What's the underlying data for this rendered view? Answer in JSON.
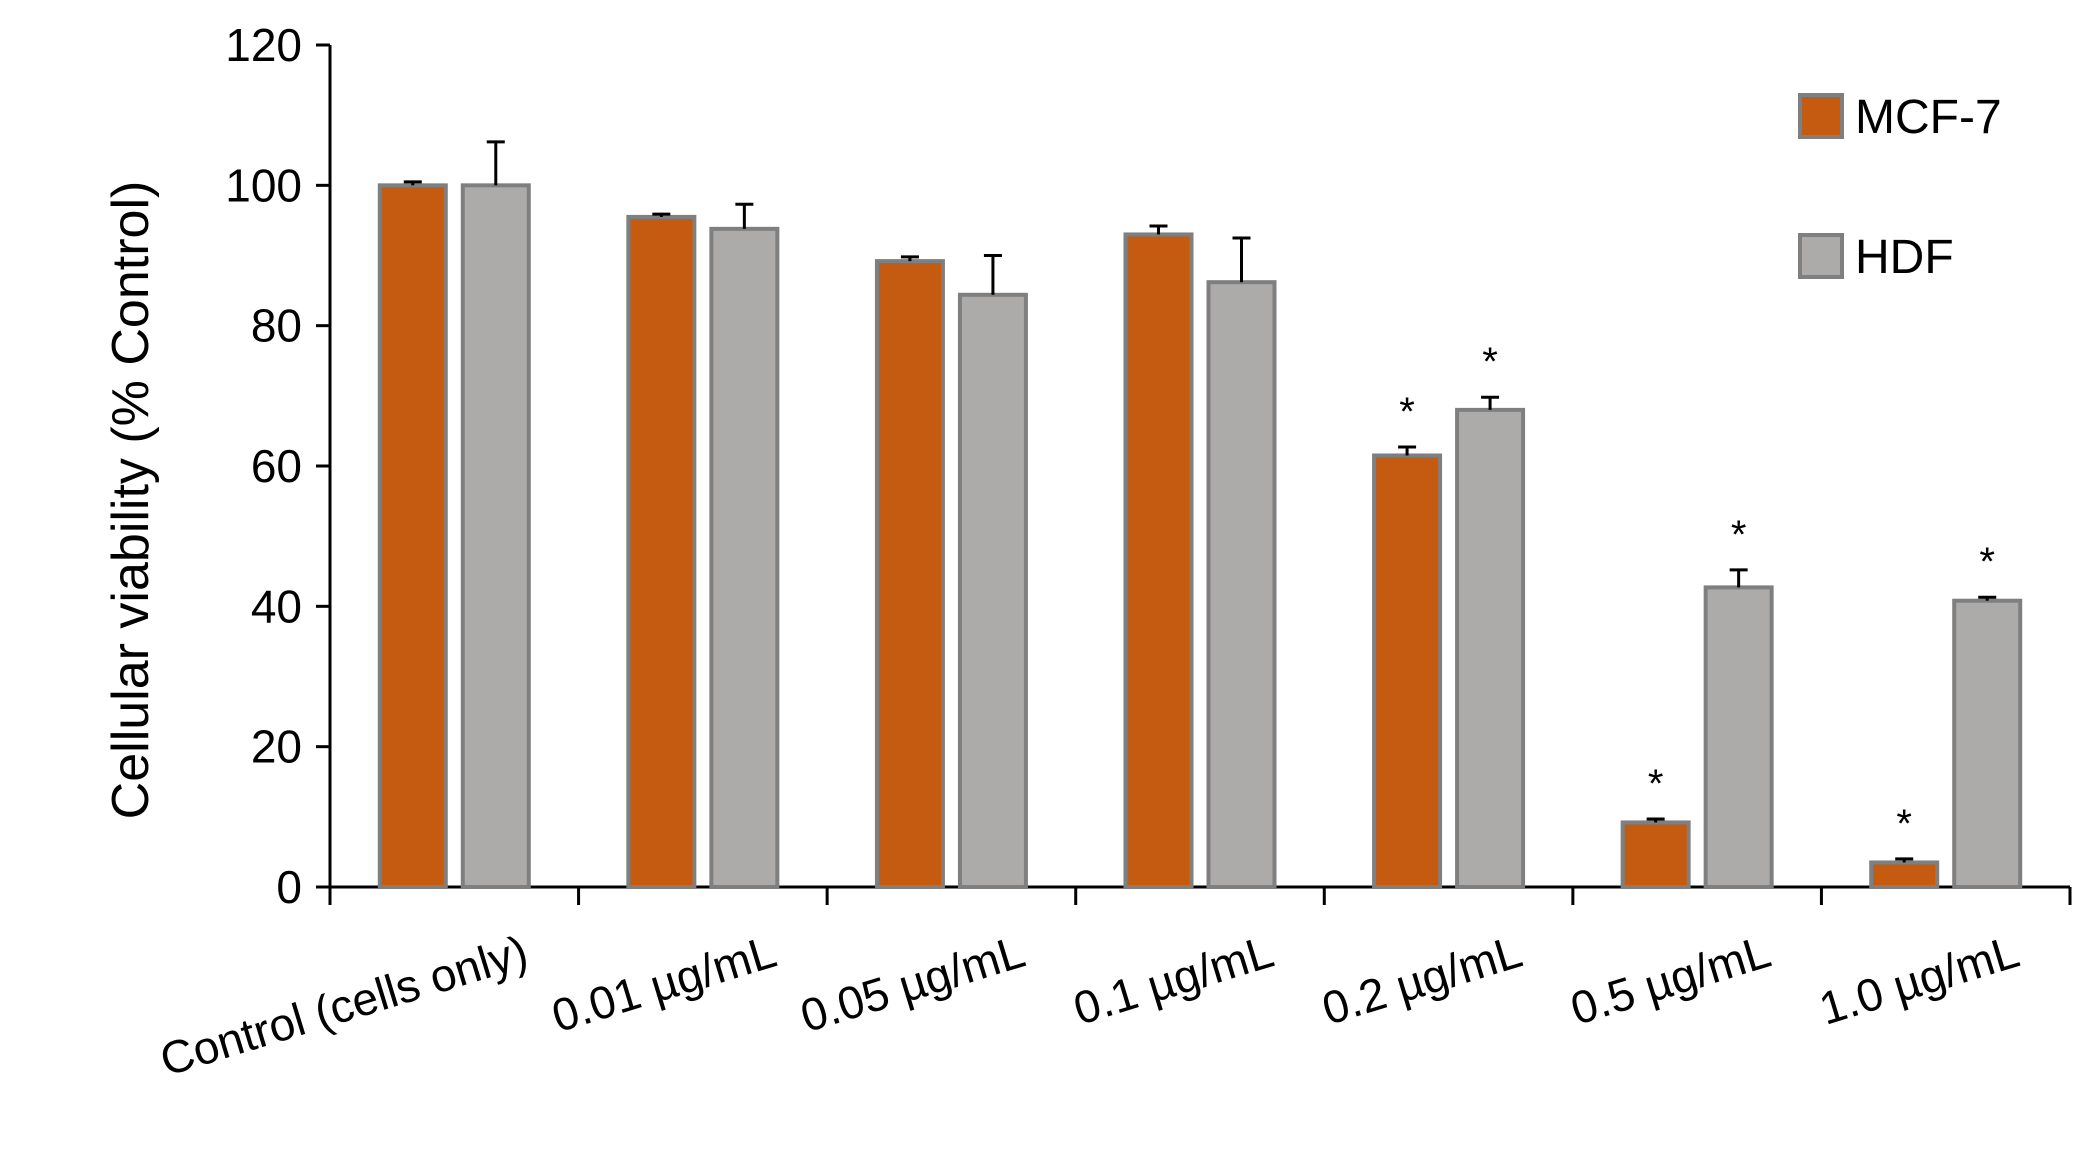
{
  "chart_data": {
    "type": "bar",
    "title": "",
    "xlabel": "",
    "ylabel": "Cellular viability (% Control)",
    "ylim": [
      0,
      120
    ],
    "yticks": [
      0,
      20,
      40,
      60,
      80,
      100,
      120
    ],
    "categories": [
      "Control (cells only)",
      "0.01 µg/mL",
      "0.05  µg/mL",
      "0.1  µg/mL",
      "0.2 µg/mL",
      "0.5  µg/mL",
      "1.0  µg/mL"
    ],
    "series": [
      {
        "name": "MCF-7",
        "color": "#C55A11",
        "values": [
          100,
          95.5,
          89.2,
          93,
          61.5,
          9.2,
          3.5
        ],
        "errors": [
          0.5,
          0.4,
          0.6,
          1.2,
          1.2,
          0.5,
          0.5
        ],
        "significance": [
          "",
          "",
          "",
          "",
          "*",
          "*",
          "*"
        ]
      },
      {
        "name": "HDF",
        "color": "#ADAAAA",
        "values": [
          100,
          93.8,
          84.4,
          86.2,
          68,
          42.7,
          40.8
        ],
        "errors": [
          6.2,
          3.5,
          5.6,
          6.3,
          1.8,
          2.5,
          0.5
        ],
        "significance": [
          "",
          "",
          "",
          "",
          "*",
          "*",
          "*"
        ]
      }
    ],
    "legend_position": "top-right",
    "grid": false
  }
}
